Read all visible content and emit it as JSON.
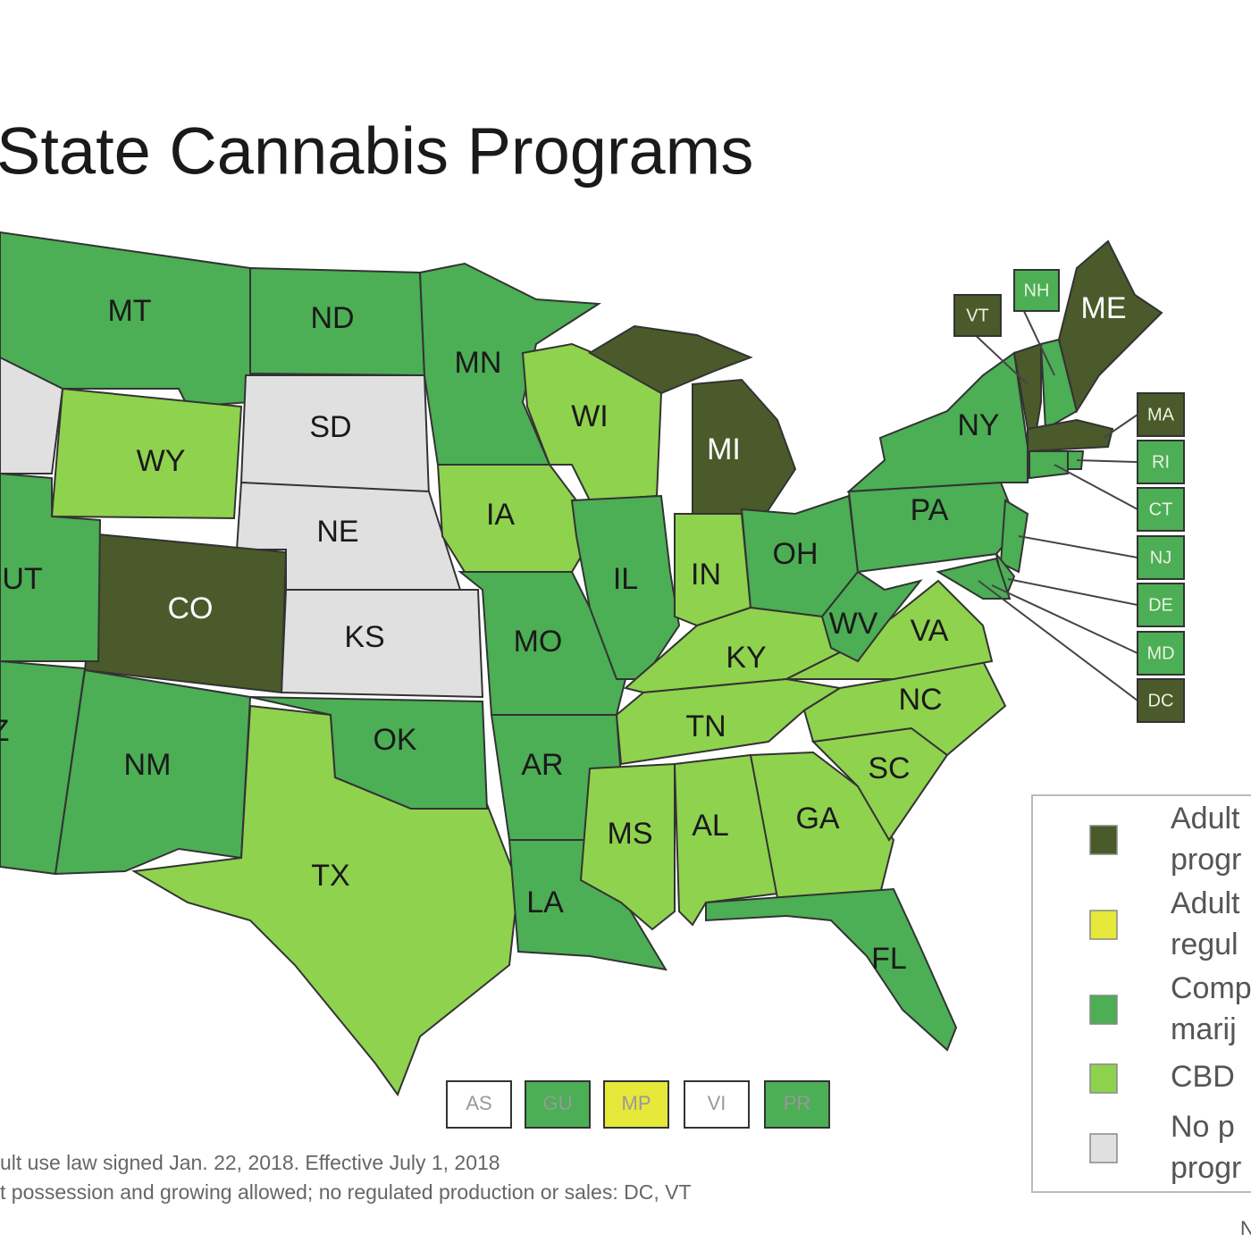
{
  "title": "State Cannabis Programs",
  "states": [
    {
      "label": "MT",
      "color": "#4cae55"
    },
    {
      "label": "ND",
      "color": "#4cae55"
    },
    {
      "label": "SD",
      "color": "#e0e0e0"
    },
    {
      "label": "NE",
      "color": "#e0e0e0"
    },
    {
      "label": "KS",
      "color": "#e0e0e0"
    },
    {
      "label": "WY",
      "color": "#8fd24e"
    },
    {
      "label": "CO",
      "color": "#4a5a2a"
    },
    {
      "label": "UT",
      "color": "#4cae55"
    },
    {
      "label": null,
      "color": "#e0e0e0"
    },
    {
      "label": "Z",
      "color": "#4cae55"
    },
    {
      "label": "NM",
      "color": "#4cae55"
    },
    {
      "label": "TX",
      "color": "#8fd24e"
    },
    {
      "label": "OK",
      "color": "#4cae55"
    },
    {
      "label": "MN",
      "color": "#4cae55"
    },
    {
      "label": "IA",
      "color": "#8fd24e"
    },
    {
      "label": "MO",
      "color": "#4cae55"
    },
    {
      "label": "AR",
      "color": "#4cae55"
    },
    {
      "label": "LA",
      "color": "#4cae55"
    },
    {
      "label": "WI",
      "color": "#8fd24e"
    },
    {
      "label": "MI",
      "color": "#4a5a2a"
    },
    {
      "label": "IL",
      "color": "#4cae55"
    },
    {
      "label": "IN",
      "color": "#8fd24e"
    },
    {
      "label": "OH",
      "color": "#4cae55"
    },
    {
      "label": "KY",
      "color": "#8fd24e"
    },
    {
      "label": "TN",
      "color": "#8fd24e"
    },
    {
      "label": "MS",
      "color": "#8fd24e"
    },
    {
      "label": "AL",
      "color": "#8fd24e"
    },
    {
      "label": "GA",
      "color": "#8fd24e"
    },
    {
      "label": "SC",
      "color": "#8fd24e"
    },
    {
      "label": "NC",
      "color": "#8fd24e"
    },
    {
      "label": "VA",
      "color": "#8fd24e"
    },
    {
      "label": "WV",
      "color": "#4cae55"
    },
    {
      "label": "PA",
      "color": "#4cae55"
    },
    {
      "label": "NY",
      "color": "#4cae55"
    },
    {
      "label": "FL",
      "color": "#4cae55"
    },
    {
      "label": "VT",
      "color": "#4a5a2a"
    },
    {
      "label": "NH",
      "color": "#4cae55"
    },
    {
      "label": "ME",
      "color": "#4a5a2a"
    },
    {
      "label": "MA",
      "color": "#4a5a2a"
    },
    {
      "label": "RI",
      "color": "#4cae55"
    },
    {
      "label": "CT",
      "color": "#4cae55"
    },
    {
      "label": "NJ",
      "color": "#4cae55"
    },
    {
      "label": "DE",
      "color": "#4cae55"
    },
    {
      "label": "MD",
      "color": "#4cae55"
    },
    {
      "label": "DC",
      "color": "#4a5a2a"
    }
  ],
  "territories": [
    {
      "label": "AS",
      "color": "#ffffff"
    },
    {
      "label": "GU",
      "color": "#4cae55"
    },
    {
      "label": "MP",
      "color": "#e6e83a"
    },
    {
      "label": "VI",
      "color": "#ffffff"
    },
    {
      "label": "PR",
      "color": "#4cae55"
    }
  ],
  "legend": [
    {
      "color": "#4a5a2a",
      "lines": [
        "Adult",
        "progr"
      ]
    },
    {
      "color": "#e6e83a",
      "lines": [
        "Adult",
        "regul"
      ]
    },
    {
      "color": "#4cae55",
      "lines": [
        "Comp",
        "marij"
      ]
    },
    {
      "color": "#8fd24e",
      "lines": [
        "CBD"
      ]
    },
    {
      "color": "#e0e0e0",
      "lines": [
        "No p",
        "progr"
      ]
    }
  ],
  "footnotes": [
    "ult use law signed Jan. 22, 2018. Effective July 1, 2018",
    "t possession and growing allowed; no regulated production or sales: DC, VT"
  ],
  "corner_text": "N"
}
